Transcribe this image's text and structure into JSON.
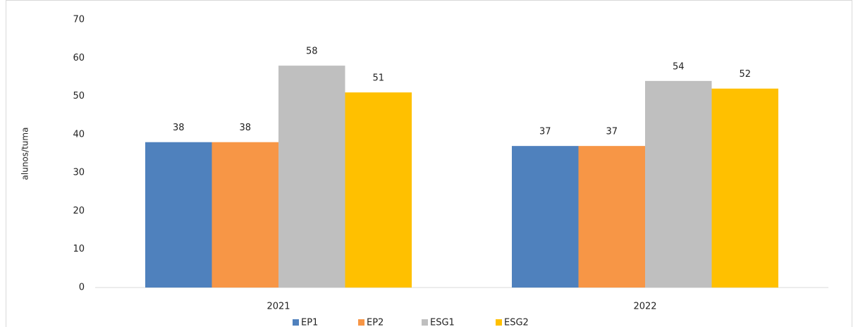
{
  "chart_data": {
    "type": "bar",
    "y_label": "alunos/tuma",
    "categories": [
      "2021",
      "2022"
    ],
    "series": [
      {
        "name": "EP1",
        "color": "#4f81bd",
        "values": [
          38,
          37
        ]
      },
      {
        "name": "EP2",
        "color": "#f79646",
        "values": [
          38,
          37
        ]
      },
      {
        "name": "ESG1",
        "color": "#bfbfbf",
        "values": [
          58,
          54
        ]
      },
      {
        "name": "ESG2",
        "color": "#ffc000",
        "values": [
          51,
          52
        ]
      }
    ],
    "ylim": [
      0,
      70
    ],
    "yticks": [
      0,
      10,
      20,
      30,
      40,
      50,
      60,
      70
    ],
    "grid": false,
    "legend": "bottom"
  }
}
